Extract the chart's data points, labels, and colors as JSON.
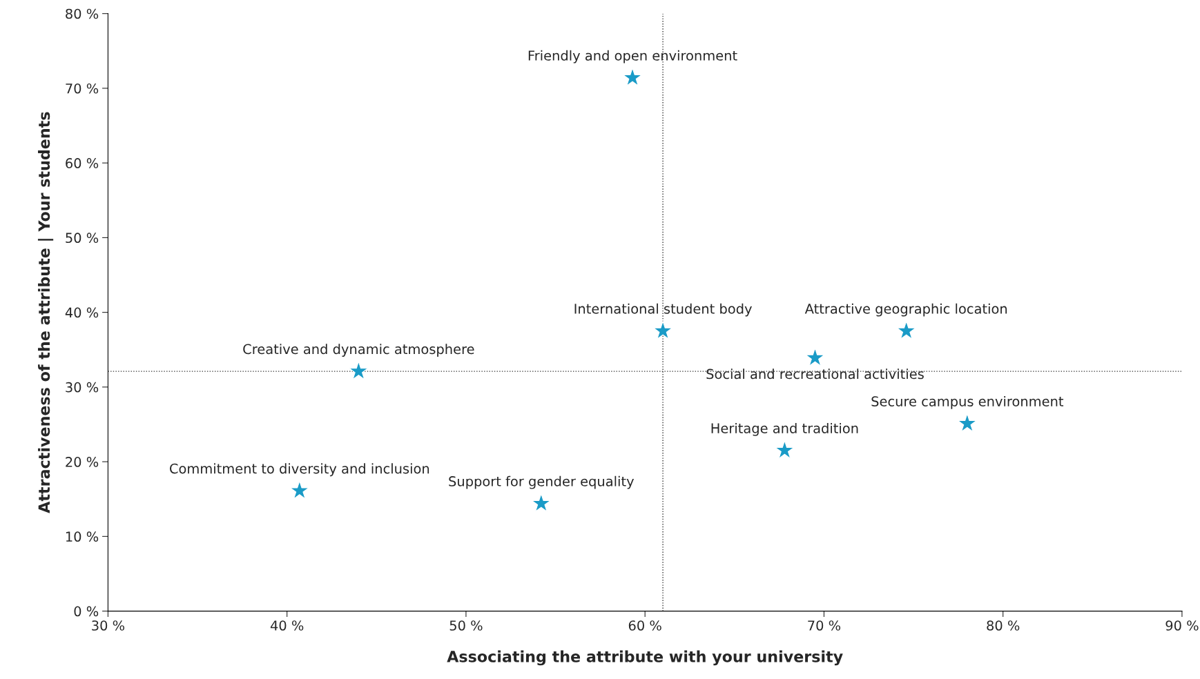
{
  "chart_data": {
    "type": "scatter",
    "xlabel": "Associating the attribute with your university",
    "ylabel": "Attractiveness of the attribute | Your students",
    "x": [
      59.3,
      61.0,
      74.6,
      69.5,
      44.0,
      78.0,
      67.8,
      40.7,
      54.2
    ],
    "series": [
      {
        "color": "#1a9bc7",
        "values": [
          71.4,
          37.5,
          37.5,
          33.9,
          32.1,
          25.1,
          21.5,
          16.1,
          14.4
        ]
      }
    ],
    "marker": "star",
    "annotations": [
      {
        "text": "Friendly and open environment",
        "x": 59.3,
        "y": 71.4
      },
      {
        "text": "International student body",
        "x": 61.0,
        "y": 37.5
      },
      {
        "text": "Attractive geographic location",
        "x": 74.6,
        "y": 37.5
      },
      {
        "text": "Social and recreational activities",
        "x": 69.5,
        "y": 33.9
      },
      {
        "text": "Creative and dynamic atmosphere",
        "x": 44.0,
        "y": 32.1
      },
      {
        "text": "Secure campus environment",
        "x": 78.0,
        "y": 25.1
      },
      {
        "text": "Heritage and tradition",
        "x": 67.8,
        "y": 21.5
      },
      {
        "text": "Commitment to diversity and inclusion",
        "x": 40.7,
        "y": 16.1
      },
      {
        "text": "Support for gender equality",
        "x": 54.2,
        "y": 14.4
      }
    ],
    "ref_lines": [
      {
        "axis": "x",
        "value": 61.0,
        "color": "#333333",
        "line_style": "dotted"
      },
      {
        "axis": "y",
        "value": 32.1,
        "color": "#333333",
        "line_style": "dotted"
      }
    ],
    "xlim": [
      30,
      90
    ],
    "xticks": [
      {
        "value": 30,
        "label": "30 %"
      },
      {
        "value": 40,
        "label": "40 %"
      },
      {
        "value": 50,
        "label": "50 %"
      },
      {
        "value": 60,
        "label": "60 %"
      },
      {
        "value": 70,
        "label": "70 %"
      },
      {
        "value": 80,
        "label": "80 %"
      },
      {
        "value": 90,
        "label": "90 %"
      }
    ],
    "ylim": [
      0,
      80
    ],
    "yticks": [
      {
        "value": 0,
        "label": "0 %"
      },
      {
        "value": 10,
        "label": "10 %"
      },
      {
        "value": 20,
        "label": "20 %"
      },
      {
        "value": 30,
        "label": "30 %"
      },
      {
        "value": 40,
        "label": "40 %"
      },
      {
        "value": 50,
        "label": "50 %"
      },
      {
        "value": 60,
        "label": "60 %"
      },
      {
        "value": 70,
        "label": "70 %"
      },
      {
        "value": 80,
        "label": "80 %"
      }
    ],
    "grid": false,
    "legend": false
  }
}
